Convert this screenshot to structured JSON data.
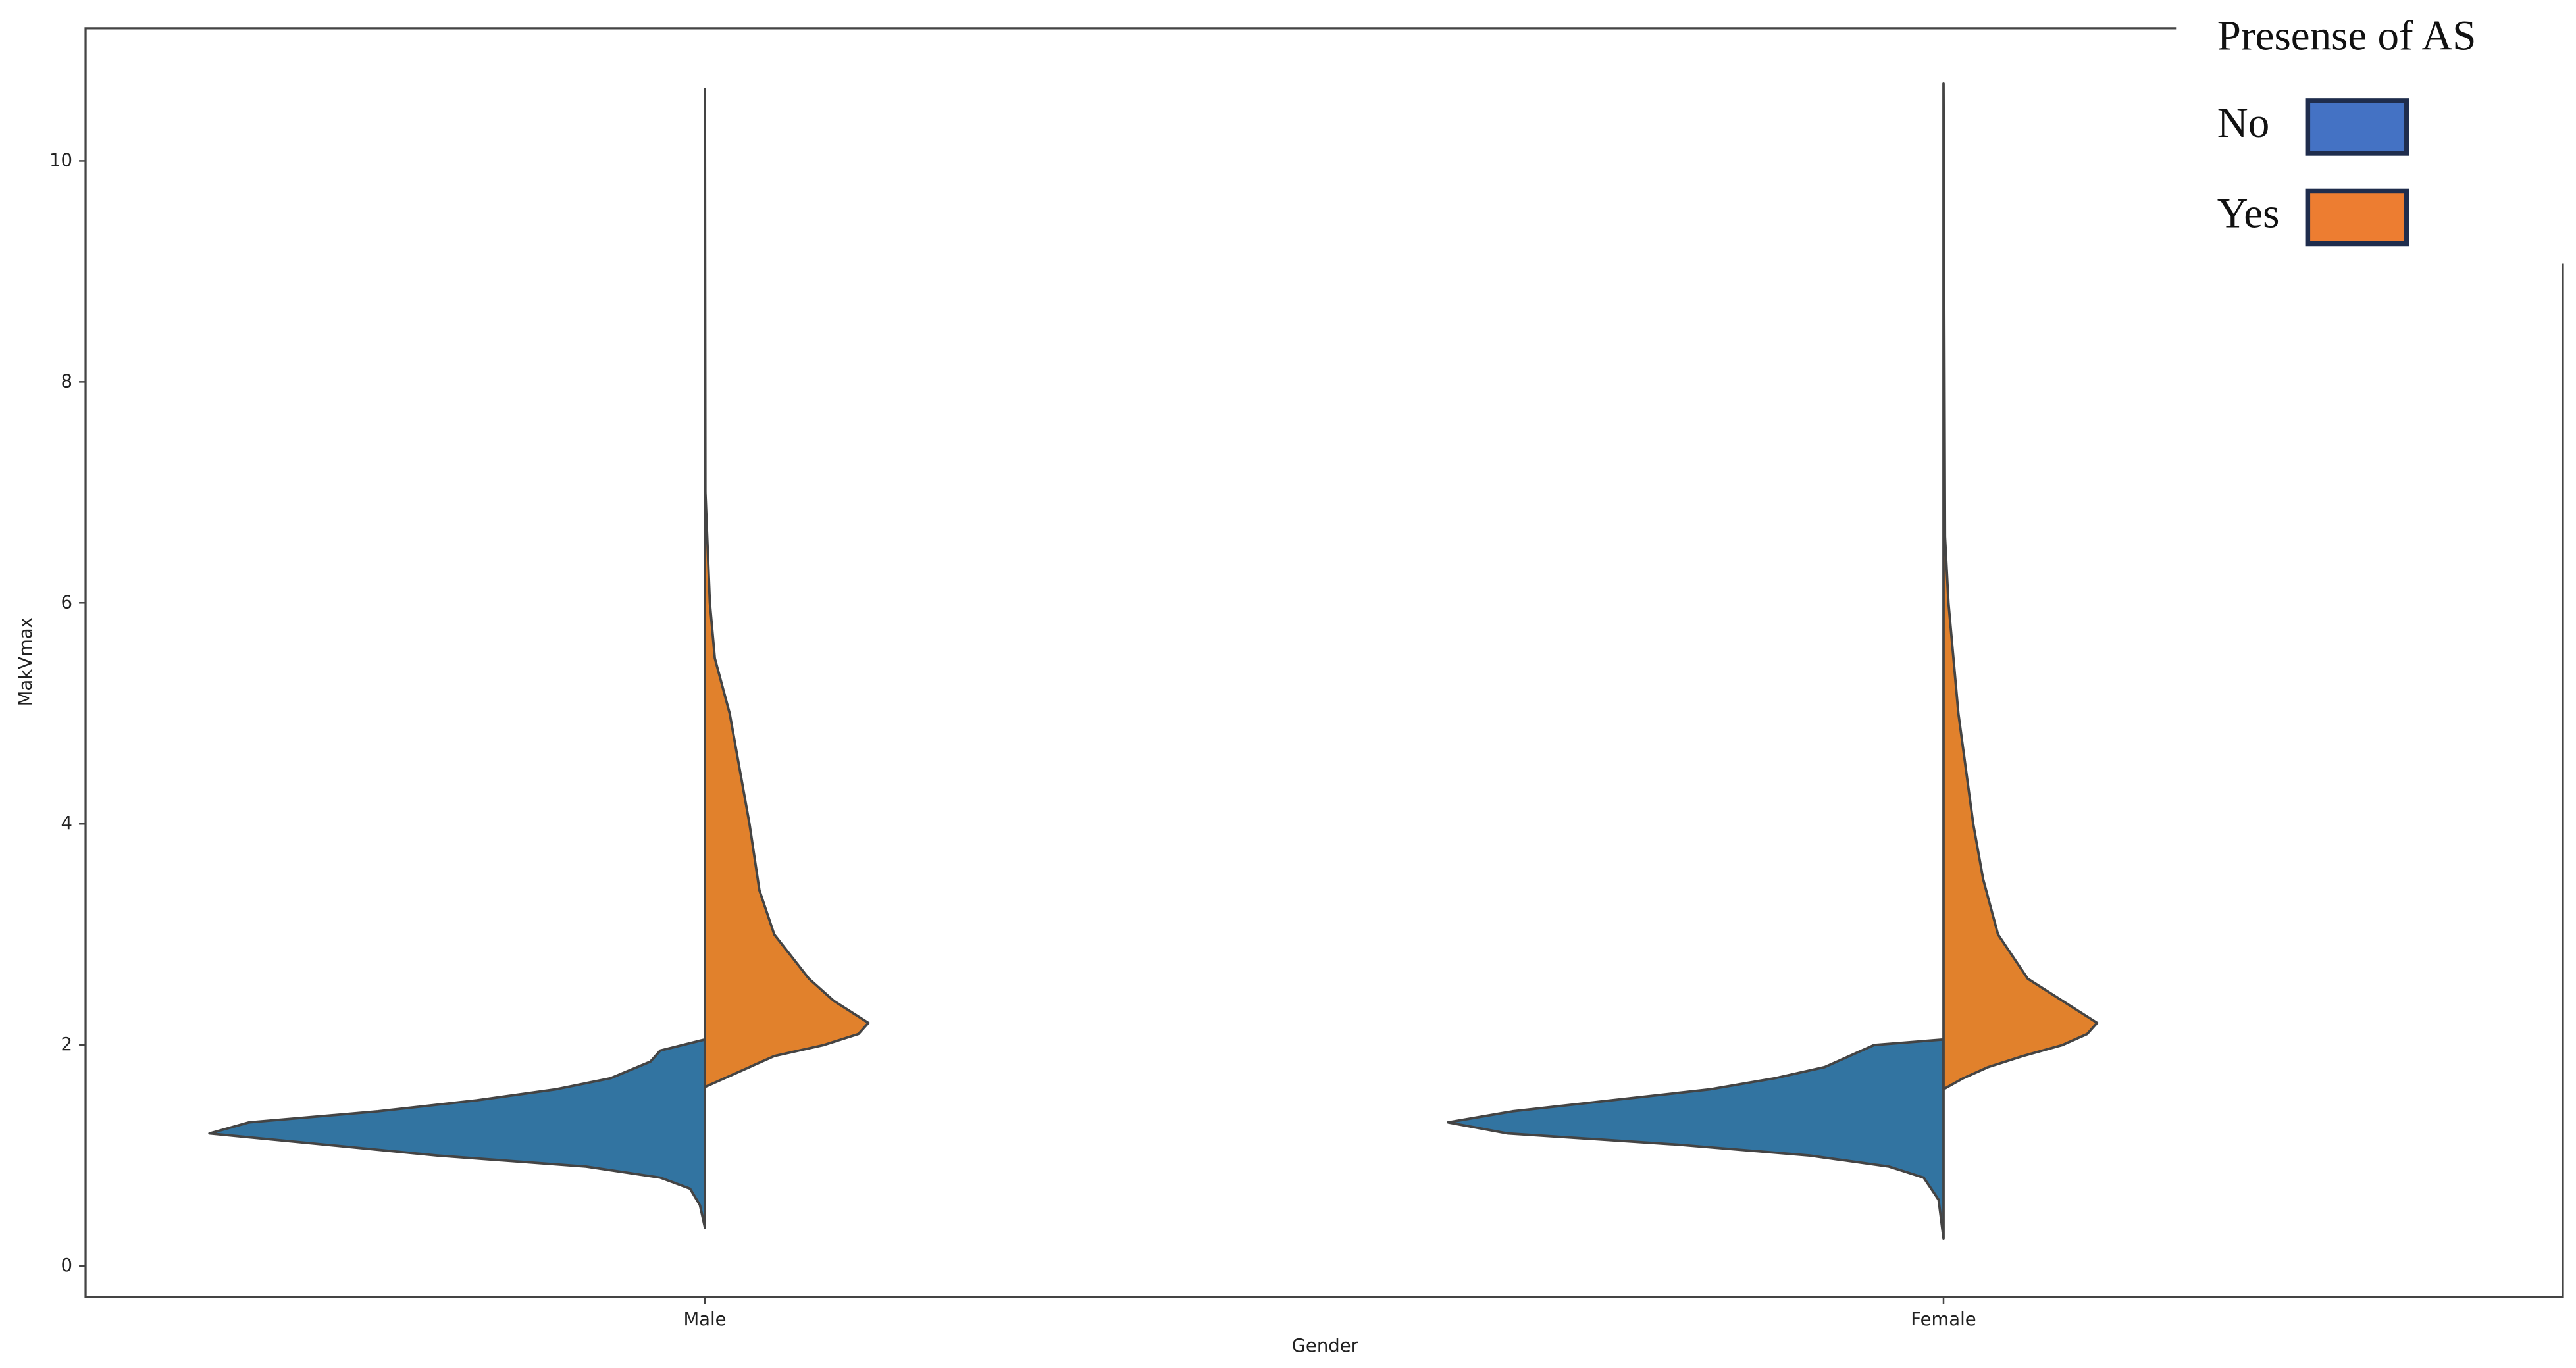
{
  "chart_data": {
    "type": "violin",
    "x_label": "Gender",
    "y_label": "MakVmax",
    "categories": [
      "Male",
      "Female"
    ],
    "ylim": [
      -0.28,
      11.2
    ],
    "yticks": [
      0,
      2,
      4,
      6,
      8,
      10
    ],
    "series": [
      {
        "name": "No",
        "color": "#3274a1",
        "legend_color": "#4472c4",
        "y": [
          [
            2.05,
            1.95,
            1.85,
            1.7,
            1.6,
            1.5,
            1.4,
            1.3,
            1.2,
            1.1,
            1.0,
            0.9,
            0.8,
            0.7,
            0.55,
            0.35
          ],
          [
            2.05,
            2.0,
            1.8,
            1.7,
            1.6,
            1.5,
            1.4,
            1.3,
            1.2,
            1.1,
            1.0,
            0.9,
            0.8,
            0.6,
            0.25
          ]
        ],
        "density": [
          [
            0,
            0.09,
            0.11,
            0.19,
            0.3,
            0.46,
            0.66,
            0.92,
            1.0,
            0.77,
            0.54,
            0.24,
            0.09,
            0.03,
            0.01,
            0
          ],
          [
            0,
            0.14,
            0.24,
            0.34,
            0.47,
            0.67,
            0.87,
            1.0,
            0.88,
            0.54,
            0.27,
            0.11,
            0.04,
            0.01,
            0
          ]
        ]
      },
      {
        "name": "Yes",
        "color": "#e1812c",
        "legend_color": "#ed7d31",
        "y": [
          [
            1.62,
            1.7,
            1.9,
            2.0,
            2.1,
            2.2,
            2.4,
            2.6,
            3.0,
            3.4,
            4.0,
            4.5,
            5.0,
            5.5,
            6.0,
            7.0,
            10.65
          ],
          [
            1.6,
            1.7,
            1.8,
            1.9,
            2.0,
            2.1,
            2.2,
            2.4,
            2.6,
            3.0,
            3.5,
            4.0,
            5.0,
            6.0,
            6.6,
            10.7
          ]
        ],
        "density": [
          [
            0,
            0.04,
            0.14,
            0.24,
            0.31,
            0.33,
            0.26,
            0.21,
            0.14,
            0.11,
            0.09,
            0.07,
            0.05,
            0.02,
            0.01,
            0.001,
            0
          ],
          [
            0,
            0.04,
            0.09,
            0.16,
            0.24,
            0.29,
            0.31,
            0.24,
            0.17,
            0.11,
            0.08,
            0.06,
            0.03,
            0.01,
            0.003,
            0
          ]
        ]
      }
    ],
    "legend": {
      "title": "Presense of AS",
      "position": "upper right"
    }
  }
}
